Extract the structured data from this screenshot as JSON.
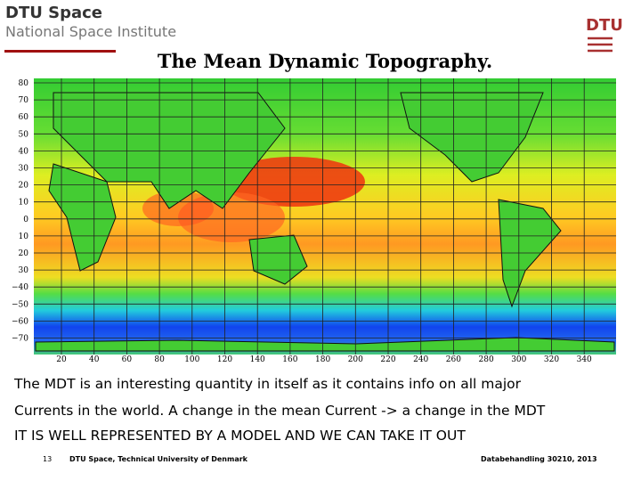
{
  "header": {
    "org": "DTU Space",
    "institute": "National Space Institute",
    "logo": "DTU"
  },
  "title": "The Mean Dynamic Topography.",
  "figure": {
    "lat_labels": [
      "80",
      "70",
      "60",
      "50",
      "40",
      "30",
      "20",
      "10",
      "0",
      "10",
      "20",
      "30",
      "−40",
      "−50",
      "−60",
      "−70"
    ],
    "lon_labels": [
      "20",
      "40",
      "60",
      "80",
      "100",
      "120",
      "140",
      "160",
      "180",
      "200",
      "220",
      "240",
      "260",
      "280",
      "300",
      "320",
      "340"
    ]
  },
  "body": [
    "The MDT is an interesting quantity in itself as it contains info on all major",
    "Currents in the world. A change in the mean Current -> a change in the MDT",
    "IT IS WELL REPRESENTED BY A MODEL AND WE CAN TAKE IT OUT"
  ],
  "footer": {
    "page": "13",
    "org": "DTU Space, Technical University of Denmark",
    "course": "Databehandling 30210, 2013"
  }
}
